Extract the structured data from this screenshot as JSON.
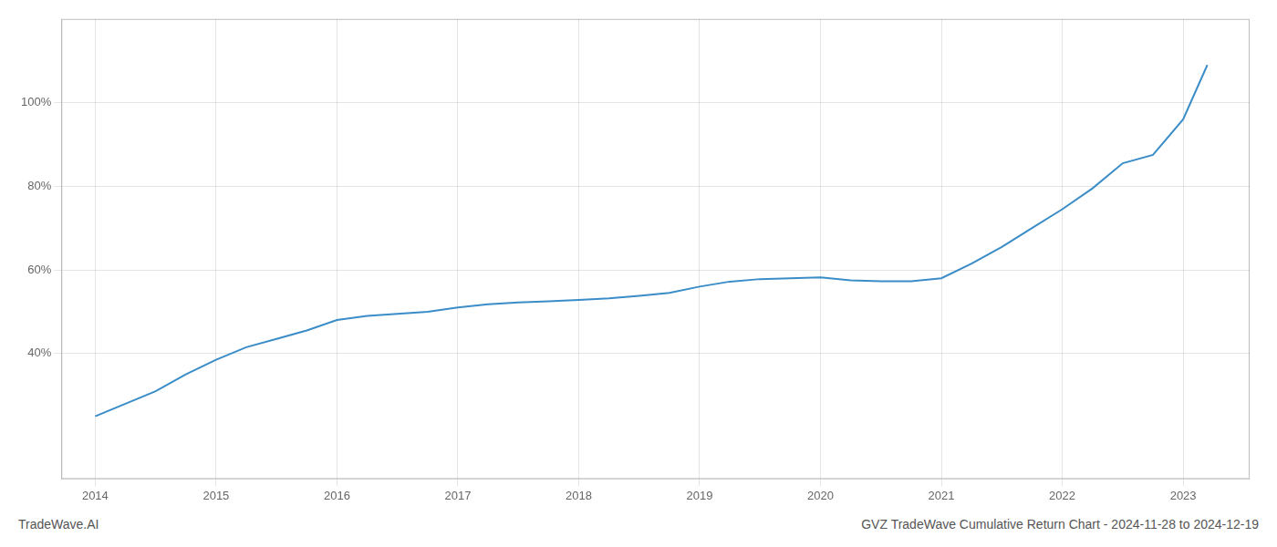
{
  "chart_data": {
    "type": "line",
    "x": [
      2014.0,
      2014.25,
      2014.5,
      2014.75,
      2015.0,
      2015.25,
      2015.5,
      2015.75,
      2016.0,
      2016.25,
      2016.5,
      2016.75,
      2017.0,
      2017.25,
      2017.5,
      2017.75,
      2018.0,
      2018.25,
      2018.5,
      2018.75,
      2019.0,
      2019.25,
      2019.5,
      2019.75,
      2020.0,
      2020.25,
      2020.5,
      2020.75,
      2021.0,
      2021.25,
      2021.5,
      2021.75,
      2022.0,
      2022.25,
      2022.5,
      2022.75,
      2023.0,
      2023.2
    ],
    "values": [
      25,
      28,
      31,
      35,
      38.5,
      41.5,
      43.5,
      45.5,
      48.0,
      49.0,
      49.5,
      50.0,
      51.0,
      51.8,
      52.2,
      52.5,
      52.8,
      53.2,
      53.8,
      54.5,
      56.0,
      57.2,
      57.8,
      58.0,
      58.2,
      57.5,
      57.3,
      57.3,
      58.0,
      61.5,
      65.5,
      70.0,
      74.5,
      79.5,
      85.5,
      87.5,
      96.0,
      109.0
    ],
    "color": "#3b8dc8",
    "xlim": [
      2013.72,
      2023.55
    ],
    "xticks": [
      2014,
      2015,
      2016,
      2017,
      2018,
      2019,
      2020,
      2021,
      2022,
      2023
    ],
    "ylim": [
      10,
      120
    ],
    "yticks": [
      {
        "value": 40,
        "label": "40%"
      },
      {
        "value": 60,
        "label": "60%"
      },
      {
        "value": 80,
        "label": "80%"
      },
      {
        "value": 100,
        "label": "100%"
      }
    ],
    "grid": true,
    "annotations": [
      "TradeWave.AI",
      "GVZ TradeWave Cumulative Return Chart - 2024-11-28 to 2024-12-19"
    ]
  }
}
